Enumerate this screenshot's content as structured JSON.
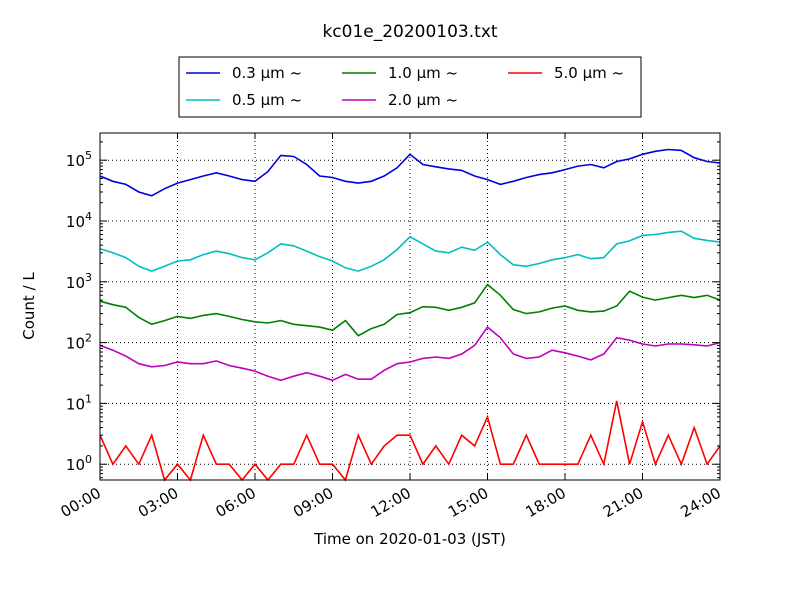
{
  "chart_data": {
    "type": "line",
    "title": "kc01e_20200103.txt",
    "xlabel": "Time on 2020-01-03 (JST)",
    "ylabel": "Count / L",
    "xlim_hours": [
      0,
      24
    ],
    "x_tick_labels": [
      "00:00",
      "03:00",
      "06:00",
      "09:00",
      "12:00",
      "15:00",
      "18:00",
      "21:00",
      "24:00"
    ],
    "yscale": "log",
    "ylim": [
      0.55,
      280000
    ],
    "y_ticks": [
      {
        "base": "10",
        "exp": "0"
      },
      {
        "base": "10",
        "exp": "1"
      },
      {
        "base": "10",
        "exp": "2"
      },
      {
        "base": "10",
        "exp": "3"
      },
      {
        "base": "10",
        "exp": "4"
      },
      {
        "base": "10",
        "exp": "5"
      }
    ],
    "grid": true,
    "legend_position": "top-center",
    "series": [
      {
        "name": "0.3 μm ~",
        "color": "#0000dd",
        "x": [
          0,
          0.5,
          1,
          1.5,
          2,
          2.5,
          3,
          3.5,
          4,
          4.5,
          5,
          5.5,
          6,
          6.5,
          7,
          7.5,
          8,
          8.5,
          9,
          9.5,
          10,
          10.5,
          11,
          11.5,
          12,
          12.5,
          13,
          13.5,
          14,
          14.5,
          15,
          15.5,
          16,
          16.5,
          17,
          17.5,
          18,
          18.5,
          19,
          19.5,
          20,
          20.5,
          21,
          21.5,
          22,
          22.5,
          23,
          23.5,
          24
        ],
        "y": [
          55000,
          45000,
          40000,
          30000,
          26000,
          34000,
          42000,
          48000,
          55000,
          62000,
          55000,
          48000,
          45000,
          65000,
          120000,
          115000,
          85000,
          55000,
          52000,
          45000,
          42000,
          45000,
          55000,
          75000,
          125000,
          85000,
          78000,
          72000,
          68000,
          55000,
          48000,
          40000,
          45000,
          52000,
          58000,
          62000,
          70000,
          80000,
          85000,
          75000,
          95000,
          105000,
          125000,
          140000,
          150000,
          145000,
          110000,
          95000,
          90000
        ]
      },
      {
        "name": "0.5 μm ~",
        "color": "#00bfbf",
        "x": [
          0,
          0.5,
          1,
          1.5,
          2,
          2.5,
          3,
          3.5,
          4,
          4.5,
          5,
          5.5,
          6,
          6.5,
          7,
          7.5,
          8,
          8.5,
          9,
          9.5,
          10,
          10.5,
          11,
          11.5,
          12,
          12.5,
          13,
          13.5,
          14,
          14.5,
          15,
          15.5,
          16,
          16.5,
          17,
          17.5,
          18,
          18.5,
          19,
          19.5,
          20,
          20.5,
          21,
          21.5,
          22,
          22.5,
          23,
          23.5,
          24
        ],
        "y": [
          3500,
          3000,
          2500,
          1800,
          1500,
          1800,
          2200,
          2300,
          2800,
          3200,
          2900,
          2500,
          2300,
          3000,
          4200,
          3900,
          3200,
          2600,
          2200,
          1700,
          1500,
          1800,
          2300,
          3400,
          5500,
          4200,
          3200,
          3000,
          3700,
          3300,
          4500,
          2800,
          1900,
          1800,
          2000,
          2300,
          2500,
          2800,
          2400,
          2500,
          4200,
          4700,
          5800,
          6000,
          6500,
          6800,
          5200,
          4800,
          4500
        ]
      },
      {
        "name": "1.0 μm ~",
        "color": "#008000",
        "x": [
          0,
          0.5,
          1,
          1.5,
          2,
          2.5,
          3,
          3.5,
          4,
          4.5,
          5,
          5.5,
          6,
          6.5,
          7,
          7.5,
          8,
          8.5,
          9,
          9.5,
          10,
          10.5,
          11,
          11.5,
          12,
          12.5,
          13,
          13.5,
          14,
          14.5,
          15,
          15.5,
          16,
          16.5,
          17,
          17.5,
          18,
          18.5,
          19,
          19.5,
          20,
          20.5,
          21,
          21.5,
          22,
          22.5,
          23,
          23.5,
          24
        ],
        "y": [
          480,
          420,
          380,
          260,
          200,
          230,
          270,
          250,
          280,
          300,
          270,
          240,
          220,
          210,
          230,
          200,
          190,
          180,
          160,
          230,
          130,
          170,
          200,
          290,
          310,
          390,
          380,
          340,
          380,
          450,
          900,
          600,
          350,
          300,
          320,
          370,
          400,
          340,
          320,
          330,
          400,
          700,
          560,
          500,
          550,
          600,
          550,
          600,
          500
        ]
      },
      {
        "name": "2.0 μm ~",
        "color": "#bf00bf",
        "x": [
          0,
          0.5,
          1,
          1.5,
          2,
          2.5,
          3,
          3.5,
          4,
          4.5,
          5,
          5.5,
          6,
          6.5,
          7,
          7.5,
          8,
          8.5,
          9,
          9.5,
          10,
          10.5,
          11,
          11.5,
          12,
          12.5,
          13,
          13.5,
          14,
          14.5,
          15,
          15.5,
          16,
          16.5,
          17,
          17.5,
          18,
          18.5,
          19,
          19.5,
          20,
          20.5,
          21,
          21.5,
          22,
          22.5,
          23,
          23.5,
          24
        ],
        "y": [
          90,
          75,
          60,
          45,
          40,
          42,
          48,
          45,
          45,
          50,
          42,
          38,
          34,
          28,
          24,
          28,
          32,
          28,
          24,
          30,
          25,
          25,
          35,
          45,
          48,
          55,
          58,
          55,
          65,
          90,
          180,
          120,
          65,
          55,
          58,
          75,
          68,
          60,
          52,
          65,
          120,
          110,
          95,
          88,
          95,
          95,
          92,
          88,
          100
        ]
      },
      {
        "name": "5.0 μm ~",
        "color": "#ff0000",
        "x": [
          0,
          0.5,
          1,
          1.5,
          2,
          2.5,
          3,
          3.5,
          4,
          4.5,
          5,
          5.5,
          6,
          6.5,
          7,
          7.5,
          8,
          8.5,
          9,
          9.5,
          10,
          10.5,
          11,
          11.5,
          12,
          12.5,
          13,
          13.5,
          14,
          14.5,
          15,
          15.5,
          16,
          16.5,
          17,
          17.5,
          18,
          18.5,
          19,
          19.5,
          20,
          20.5,
          21,
          21.5,
          22,
          22.5,
          23,
          23.5,
          24
        ],
        "y": [
          3,
          1,
          2,
          1,
          3,
          0.5,
          1,
          0.5,
          3,
          1,
          1,
          0.5,
          1,
          0.5,
          1,
          1,
          3,
          1,
          1,
          0.5,
          3,
          1,
          2,
          3,
          3,
          1,
          2,
          1,
          3,
          2,
          6,
          1,
          1,
          3,
          1,
          1,
          1,
          1,
          3,
          1,
          11,
          1,
          5,
          1,
          3,
          1,
          4,
          1,
          2
        ]
      }
    ]
  }
}
